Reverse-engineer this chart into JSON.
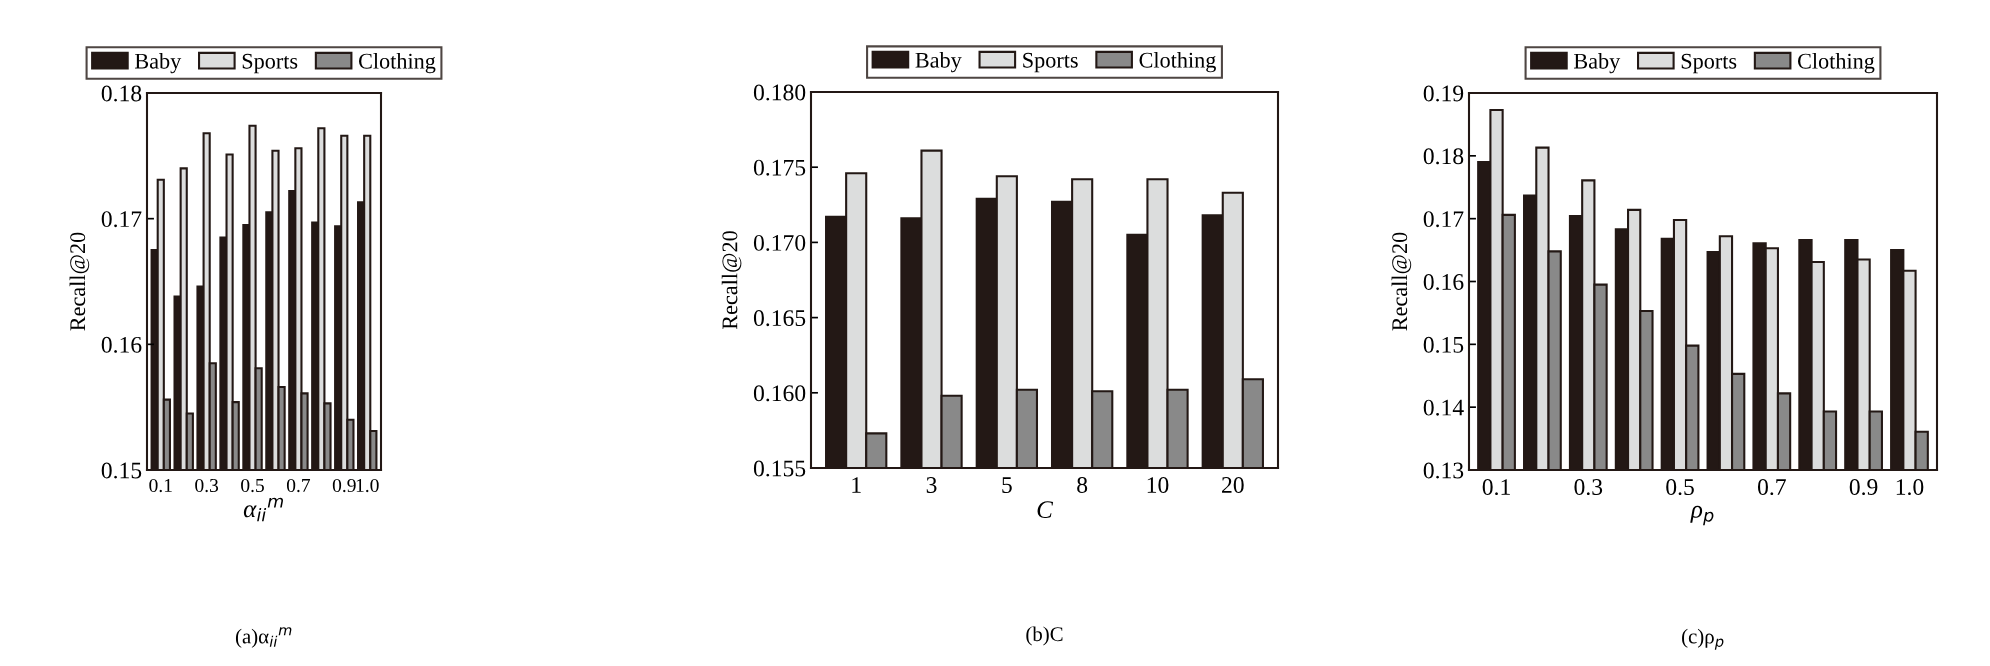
{
  "chart_data": [
    {
      "type": "bar",
      "title": "(a)α$_{ii}$$^{m}$",
      "xlabel": "α$_{ii}$$^{m}$",
      "ylabel": "Recall@20",
      "legend": "top",
      "categories": [
        "0.1",
        null,
        "0.3",
        null,
        "0.5",
        null,
        "0.7",
        null,
        "0.9",
        "1.0"
      ],
      "ylim": [
        0.15,
        0.18
      ],
      "yticks": [
        0.15,
        0.16,
        0.17,
        0.18
      ],
      "series": [
        {
          "name": "Baby",
          "color": "#231815",
          "values": [
            0.1675,
            0.1638,
            0.1646,
            0.1685,
            0.1695,
            0.1705,
            0.1722,
            0.1697,
            0.1694,
            0.1713
          ]
        },
        {
          "name": "Sports",
          "color": "#dcdddd",
          "values": [
            0.1731,
            0.174,
            0.1768,
            0.1751,
            0.1774,
            0.1754,
            0.1756,
            0.1772,
            0.1766,
            0.1766
          ]
        },
        {
          "name": "Clothing",
          "color": "#898989",
          "values": [
            0.1556,
            0.1545,
            0.1585,
            0.1554,
            0.1581,
            0.1566,
            0.1561,
            0.1553,
            0.154,
            0.1531
          ]
        }
      ]
    },
    {
      "type": "bar",
      "title": "(b)C",
      "xlabel": "C",
      "ylabel": "Recall@20",
      "legend": "top",
      "categories": [
        "1",
        "3",
        "5",
        "8",
        "10",
        "20"
      ],
      "ylim": [
        0.155,
        0.18
      ],
      "yticks": [
        0.155,
        {
          "value": 0.16,
          "label": "0.160"
        },
        0.165,
        {
          "value": 0.17,
          "label": "0.170"
        },
        0.175,
        {
          "value": 0.18,
          "label": "0.180"
        }
      ],
      "series": [
        {
          "name": "Baby",
          "color": "#231815",
          "values": [
            0.1717,
            0.1716,
            0.1729,
            0.1727,
            0.1705,
            0.1718
          ]
        },
        {
          "name": "Sports",
          "color": "#dcdddd",
          "values": [
            0.1746,
            0.1761,
            0.1744,
            0.1742,
            0.1742,
            0.1733
          ]
        },
        {
          "name": "Clothing",
          "color": "#898989",
          "values": [
            0.1573,
            0.1598,
            0.1602,
            0.1601,
            0.1602,
            0.1609
          ]
        }
      ]
    },
    {
      "type": "bar",
      "title": "(c)ρ$_{p}$",
      "xlabel": "ρ$_{p}$",
      "ylabel": "Recall@20",
      "legend": "top",
      "categories": [
        "0.1",
        null,
        "0.3",
        null,
        "0.5",
        null,
        "0.7",
        null,
        "0.9",
        "1.0"
      ],
      "ylim": [
        0.13,
        0.19
      ],
      "yticks": [
        0.13,
        0.14,
        0.15,
        0.16,
        0.17,
        0.18,
        0.19
      ],
      "series": [
        {
          "name": "Baby",
          "color": "#231815",
          "values": [
            0.179,
            0.1737,
            0.1704,
            0.1683,
            0.1668,
            0.1647,
            0.1661,
            0.1666,
            0.1666,
            0.165
          ]
        },
        {
          "name": "Sports",
          "color": "#dcdddd",
          "values": [
            0.1873,
            0.1813,
            0.1761,
            0.1714,
            0.1698,
            0.1672,
            0.1653,
            0.1631,
            0.1635,
            0.1617
          ]
        },
        {
          "name": "Clothing",
          "color": "#898989",
          "values": [
            0.1706,
            0.1648,
            0.1595,
            0.1553,
            0.1498,
            0.1453,
            0.1422,
            0.1393,
            0.1393,
            0.1361
          ]
        }
      ]
    }
  ]
}
